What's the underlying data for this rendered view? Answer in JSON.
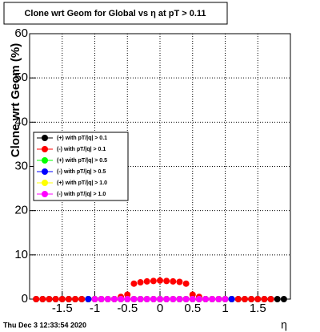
{
  "chart_data": {
    "type": "scatter",
    "title": "Clone wrt Geom for Global vs  η at pT > 0.11",
    "y_label": "Clone wrt Geom (%)",
    "x_label": "η",
    "timestamp": "Thu Dec  3 12:33:54 2020",
    "xlim": [
      -2,
      2
    ],
    "ylim": [
      0,
      60
    ],
    "xticks": [
      -1.5,
      -1,
      -0.5,
      0,
      0.5,
      1,
      1.5
    ],
    "yticks": [
      0,
      10,
      20,
      30,
      40,
      50,
      60
    ],
    "grid": true,
    "x": [
      -1.9,
      -1.8,
      -1.7,
      -1.6,
      -1.5,
      -1.4,
      -1.3,
      -1.2,
      -1.1,
      -1.0,
      -0.9,
      -0.8,
      -0.7,
      -0.6,
      -0.5,
      -0.4,
      -0.3,
      -0.2,
      -0.1,
      0,
      0.1,
      0.2,
      0.3,
      0.4,
      0.5,
      0.6,
      0.7,
      0.8,
      0.9,
      1.0,
      1.1,
      1.2,
      1.3,
      1.4,
      1.5,
      1.6,
      1.7,
      1.8,
      1.9
    ],
    "series": [
      {
        "name": "(+) with pT/|q| > 0.1",
        "color": "#000000",
        "values": [
          0,
          0,
          0,
          0,
          0,
          0,
          0,
          0,
          0,
          0,
          0,
          0,
          0,
          0,
          0,
          0,
          0,
          0,
          0,
          0,
          0,
          0,
          0,
          0,
          0,
          0,
          0,
          0,
          0,
          0,
          0,
          0,
          0,
          0,
          0,
          0,
          0,
          0,
          0
        ]
      },
      {
        "name": "(-) with pT/|q| > 0.1",
        "color": "#ff0000",
        "values": [
          0,
          0,
          0,
          0,
          0,
          0,
          0,
          0,
          0,
          0,
          0,
          0,
          0,
          0.5,
          1,
          3.5,
          3.8,
          4,
          4.1,
          4.2,
          4.1,
          4,
          3.9,
          3.5,
          1,
          0.5,
          0,
          0,
          0,
          0,
          0,
          0,
          0,
          0,
          0,
          0,
          0,
          null,
          null
        ]
      },
      {
        "name": "(+) with pT/|q| > 0.5",
        "color": "#00ff00",
        "values": [
          null,
          null,
          null,
          null,
          null,
          null,
          null,
          null,
          0,
          0,
          0,
          0,
          0,
          0,
          0,
          0,
          0,
          0,
          0,
          0,
          0,
          0,
          0,
          0,
          0,
          0,
          0,
          0,
          0,
          0,
          0,
          null,
          null,
          null,
          null,
          null,
          null,
          null,
          null
        ]
      },
      {
        "name": "(-) with pT/|q| > 0.5",
        "color": "#0000ff",
        "values": [
          null,
          null,
          null,
          null,
          null,
          null,
          null,
          null,
          0,
          0,
          0,
          0,
          0,
          0,
          0,
          0,
          0,
          0,
          0,
          0,
          0,
          0,
          0,
          0,
          0,
          0,
          0,
          0,
          0,
          0,
          0,
          null,
          null,
          null,
          null,
          null,
          null,
          null,
          null
        ]
      },
      {
        "name": "(+) with pT/|q| > 1.0",
        "color": "#ffff00",
        "values": [
          null,
          null,
          null,
          null,
          null,
          null,
          null,
          null,
          null,
          0,
          0,
          0,
          0,
          0,
          0,
          0,
          0,
          0,
          0,
          0,
          0,
          0,
          0,
          0,
          0,
          0,
          0,
          0,
          0,
          0,
          null,
          null,
          null,
          null,
          null,
          null,
          null,
          null,
          null
        ]
      },
      {
        "name": "(-) with pT/|q| > 1.0",
        "color": "#ff00ff",
        "values": [
          null,
          null,
          null,
          null,
          null,
          null,
          null,
          null,
          null,
          0,
          0,
          0,
          0,
          0,
          0,
          0,
          0,
          0,
          0,
          0,
          0,
          0,
          0,
          0,
          0,
          0,
          0,
          0,
          0,
          0,
          null,
          null,
          null,
          null,
          null,
          null,
          null,
          null,
          null
        ]
      }
    ]
  }
}
